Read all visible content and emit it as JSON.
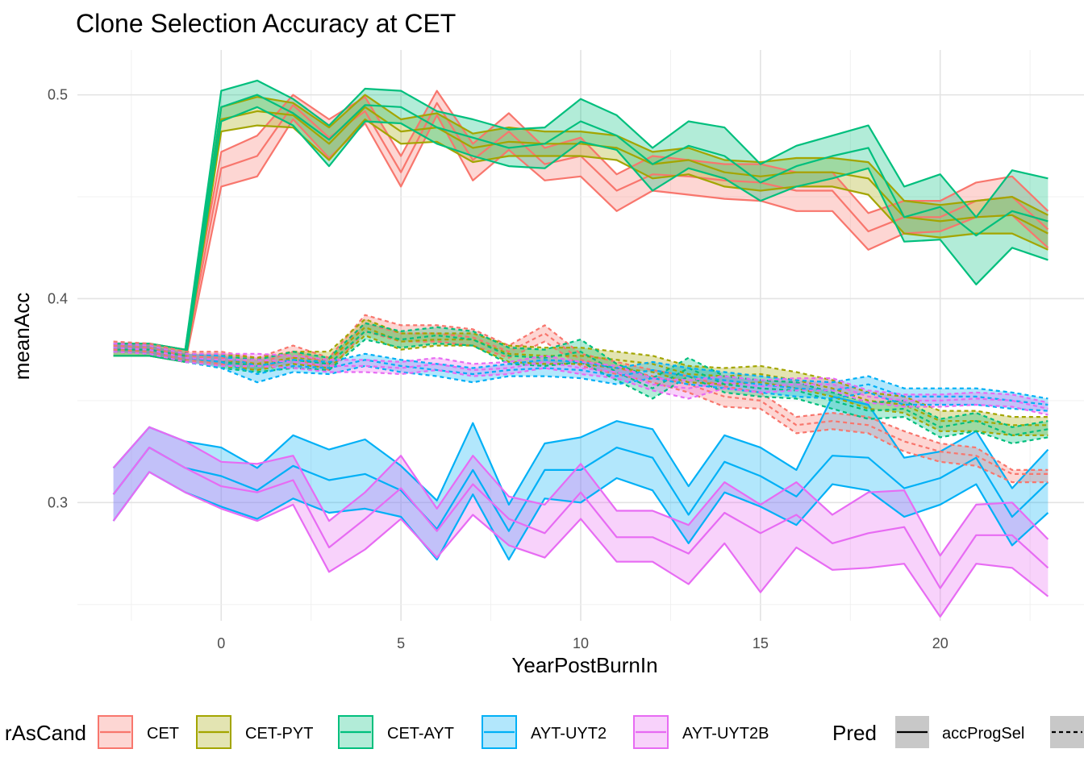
{
  "chart_data": {
    "type": "line",
    "title": "Clone Selection Accuracy at CET",
    "xlabel": "YearPostBurnIn",
    "ylabel": "meanAcc",
    "xlim": [
      -4,
      24
    ],
    "ylim": [
      0.242,
      0.522
    ],
    "x_ticks": [
      0,
      5,
      10,
      15,
      20
    ],
    "x_tick_labels": [
      "0",
      "5",
      "10",
      "15",
      "20"
    ],
    "y_ticks": [
      0.3,
      0.4,
      0.5
    ],
    "y_tick_labels": [
      "0.3",
      "0.4",
      "0.5"
    ],
    "grid": true,
    "legend_position": "bottom",
    "legend": {
      "color_title": "rAsCand",
      "color_entries": [
        {
          "name": "CET",
          "color": "#F8766D"
        },
        {
          "name": "CET-PYT",
          "color": "#A3A500"
        },
        {
          "name": "CET-AYT",
          "color": "#00BF7D"
        },
        {
          "name": "AYT-UYT2",
          "color": "#00B0F6"
        },
        {
          "name": "AYT-UYT2B",
          "color": "#E76BF3"
        }
      ],
      "linetype_title": "Pred",
      "linetype_entries": [
        {
          "name": "accProgSel",
          "style": "solid"
        },
        {
          "name": "",
          "style": "dashed"
        }
      ]
    },
    "x": [
      -3,
      -2,
      -1,
      0,
      1,
      2,
      3,
      4,
      5,
      6,
      7,
      8,
      9,
      10,
      11,
      12,
      13,
      14,
      15,
      16,
      17,
      18,
      19,
      20,
      21,
      22,
      23
    ],
    "series": [
      {
        "name": "CET",
        "linetype": "solid",
        "color": "#F8766D",
        "mean": [
          0.375,
          0.375,
          0.372,
          0.464,
          0.47,
          0.495,
          0.479,
          0.492,
          0.462,
          0.496,
          0.468,
          0.482,
          0.466,
          0.47,
          0.453,
          0.461,
          0.46,
          0.458,
          0.457,
          0.453,
          0.453,
          0.433,
          0.44,
          0.44,
          0.448,
          0.45,
          0.434
        ],
        "lower": [
          0.372,
          0.372,
          0.369,
          0.455,
          0.46,
          0.488,
          0.469,
          0.486,
          0.455,
          0.49,
          0.458,
          0.473,
          0.458,
          0.46,
          0.443,
          0.453,
          0.451,
          0.449,
          0.448,
          0.443,
          0.443,
          0.424,
          0.432,
          0.433,
          0.44,
          0.441,
          0.425
        ],
        "upper": [
          0.378,
          0.378,
          0.375,
          0.472,
          0.48,
          0.5,
          0.488,
          0.499,
          0.47,
          0.502,
          0.476,
          0.491,
          0.474,
          0.479,
          0.461,
          0.47,
          0.468,
          0.466,
          0.466,
          0.462,
          0.462,
          0.442,
          0.448,
          0.448,
          0.457,
          0.46,
          0.443
        ]
      },
      {
        "name": "CET-PYT",
        "linetype": "solid",
        "color": "#A3A500",
        "mean": [
          0.375,
          0.375,
          0.372,
          0.488,
          0.492,
          0.49,
          0.476,
          0.494,
          0.482,
          0.484,
          0.474,
          0.477,
          0.476,
          0.476,
          0.474,
          0.466,
          0.468,
          0.462,
          0.46,
          0.462,
          0.462,
          0.459,
          0.44,
          0.438,
          0.44,
          0.441,
          0.432
        ],
        "lower": [
          0.372,
          0.372,
          0.369,
          0.482,
          0.485,
          0.484,
          0.468,
          0.488,
          0.476,
          0.477,
          0.467,
          0.47,
          0.47,
          0.47,
          0.468,
          0.459,
          0.461,
          0.455,
          0.453,
          0.455,
          0.455,
          0.451,
          0.432,
          0.43,
          0.432,
          0.432,
          0.424
        ],
        "upper": [
          0.378,
          0.378,
          0.375,
          0.494,
          0.499,
          0.496,
          0.484,
          0.5,
          0.488,
          0.491,
          0.481,
          0.484,
          0.482,
          0.482,
          0.48,
          0.472,
          0.474,
          0.468,
          0.467,
          0.469,
          0.469,
          0.467,
          0.448,
          0.446,
          0.448,
          0.45,
          0.441
        ]
      },
      {
        "name": "CET-AYT",
        "linetype": "solid",
        "color": "#00BF7D",
        "mean": [
          0.375,
          0.375,
          0.372,
          0.494,
          0.5,
          0.491,
          0.478,
          0.495,
          0.494,
          0.484,
          0.479,
          0.474,
          0.476,
          0.487,
          0.48,
          0.466,
          0.475,
          0.47,
          0.457,
          0.465,
          0.47,
          0.474,
          0.44,
          0.445,
          0.431,
          0.443,
          0.438
        ],
        "lower": [
          0.372,
          0.372,
          0.369,
          0.487,
          0.494,
          0.485,
          0.465,
          0.487,
          0.486,
          0.476,
          0.47,
          0.465,
          0.464,
          0.477,
          0.473,
          0.453,
          0.464,
          0.459,
          0.448,
          0.455,
          0.459,
          0.464,
          0.428,
          0.429,
          0.407,
          0.425,
          0.419
        ],
        "upper": [
          0.378,
          0.378,
          0.375,
          0.502,
          0.507,
          0.498,
          0.485,
          0.503,
          0.502,
          0.492,
          0.488,
          0.483,
          0.484,
          0.498,
          0.49,
          0.474,
          0.487,
          0.484,
          0.466,
          0.475,
          0.48,
          0.485,
          0.455,
          0.461,
          0.44,
          0.463,
          0.459
        ]
      },
      {
        "name": "AYT-UYT2",
        "linetype": "solid",
        "color": "#00B0F6",
        "mean": [
          0.304,
          0.327,
          0.317,
          0.313,
          0.306,
          0.318,
          0.311,
          0.314,
          0.306,
          0.287,
          0.316,
          0.286,
          0.316,
          0.316,
          0.327,
          0.322,
          0.294,
          0.32,
          0.313,
          0.303,
          0.323,
          0.322,
          0.307,
          0.312,
          0.322,
          0.293,
          0.31
        ],
        "lower": [
          0.291,
          0.315,
          0.305,
          0.298,
          0.292,
          0.302,
          0.295,
          0.297,
          0.293,
          0.272,
          0.304,
          0.272,
          0.302,
          0.3,
          0.312,
          0.306,
          0.28,
          0.305,
          0.298,
          0.289,
          0.309,
          0.306,
          0.293,
          0.299,
          0.309,
          0.279,
          0.295
        ],
        "upper": [
          0.317,
          0.337,
          0.33,
          0.327,
          0.317,
          0.333,
          0.326,
          0.331,
          0.318,
          0.301,
          0.339,
          0.299,
          0.329,
          0.332,
          0.34,
          0.336,
          0.308,
          0.333,
          0.327,
          0.316,
          0.352,
          0.348,
          0.322,
          0.325,
          0.335,
          0.307,
          0.326
        ]
      },
      {
        "name": "AYT-UYT2B",
        "linetype": "solid",
        "color": "#E76BF3",
        "mean": [
          0.304,
          0.327,
          0.317,
          0.308,
          0.305,
          0.311,
          0.278,
          0.292,
          0.307,
          0.286,
          0.309,
          0.292,
          0.285,
          0.305,
          0.283,
          0.283,
          0.275,
          0.295,
          0.285,
          0.294,
          0.28,
          0.285,
          0.288,
          0.258,
          0.284,
          0.284,
          0.268
        ],
        "lower": [
          0.291,
          0.315,
          0.305,
          0.297,
          0.291,
          0.299,
          0.266,
          0.277,
          0.292,
          0.273,
          0.294,
          0.279,
          0.273,
          0.292,
          0.271,
          0.271,
          0.26,
          0.28,
          0.256,
          0.278,
          0.267,
          0.268,
          0.27,
          0.244,
          0.27,
          0.268,
          0.254
        ],
        "upper": [
          0.317,
          0.337,
          0.33,
          0.32,
          0.319,
          0.323,
          0.291,
          0.305,
          0.323,
          0.297,
          0.323,
          0.303,
          0.299,
          0.319,
          0.296,
          0.296,
          0.289,
          0.31,
          0.299,
          0.31,
          0.294,
          0.305,
          0.306,
          0.274,
          0.299,
          0.3,
          0.282
        ]
      },
      {
        "name": "CET",
        "linetype": "dashed",
        "color": "#F8766D",
        "mean": [
          0.377,
          0.376,
          0.372,
          0.371,
          0.368,
          0.374,
          0.368,
          0.388,
          0.383,
          0.383,
          0.381,
          0.374,
          0.383,
          0.37,
          0.366,
          0.362,
          0.358,
          0.352,
          0.35,
          0.338,
          0.34,
          0.338,
          0.33,
          0.325,
          0.323,
          0.314,
          0.314
        ],
        "lower": [
          0.375,
          0.374,
          0.37,
          0.368,
          0.365,
          0.371,
          0.365,
          0.384,
          0.379,
          0.379,
          0.377,
          0.371,
          0.379,
          0.367,
          0.363,
          0.359,
          0.354,
          0.347,
          0.346,
          0.334,
          0.336,
          0.334,
          0.325,
          0.32,
          0.318,
          0.31,
          0.31
        ],
        "upper": [
          0.379,
          0.378,
          0.374,
          0.374,
          0.371,
          0.377,
          0.371,
          0.392,
          0.387,
          0.387,
          0.385,
          0.377,
          0.387,
          0.373,
          0.369,
          0.365,
          0.362,
          0.357,
          0.354,
          0.342,
          0.344,
          0.342,
          0.335,
          0.329,
          0.327,
          0.316,
          0.316
        ]
      },
      {
        "name": "CET-PYT",
        "linetype": "dashed",
        "color": "#A3A500",
        "mean": [
          0.376,
          0.375,
          0.371,
          0.37,
          0.368,
          0.371,
          0.37,
          0.386,
          0.379,
          0.38,
          0.38,
          0.373,
          0.372,
          0.372,
          0.37,
          0.368,
          0.363,
          0.362,
          0.363,
          0.36,
          0.356,
          0.35,
          0.348,
          0.34,
          0.34,
          0.338,
          0.338
        ],
        "lower": [
          0.374,
          0.373,
          0.369,
          0.367,
          0.365,
          0.368,
          0.366,
          0.382,
          0.375,
          0.377,
          0.377,
          0.369,
          0.368,
          0.368,
          0.366,
          0.364,
          0.359,
          0.358,
          0.359,
          0.356,
          0.352,
          0.346,
          0.344,
          0.335,
          0.335,
          0.333,
          0.333
        ],
        "upper": [
          0.378,
          0.377,
          0.373,
          0.373,
          0.371,
          0.374,
          0.374,
          0.39,
          0.383,
          0.383,
          0.383,
          0.377,
          0.376,
          0.376,
          0.374,
          0.372,
          0.367,
          0.366,
          0.367,
          0.364,
          0.36,
          0.354,
          0.352,
          0.345,
          0.345,
          0.342,
          0.342
        ]
      },
      {
        "name": "CET-AYT",
        "linetype": "dashed",
        "color": "#00BF7D",
        "mean": [
          0.376,
          0.375,
          0.371,
          0.369,
          0.367,
          0.37,
          0.368,
          0.384,
          0.38,
          0.382,
          0.38,
          0.372,
          0.371,
          0.374,
          0.364,
          0.356,
          0.366,
          0.358,
          0.356,
          0.355,
          0.35,
          0.345,
          0.346,
          0.337,
          0.34,
          0.333,
          0.336
        ],
        "lower": [
          0.374,
          0.373,
          0.369,
          0.366,
          0.364,
          0.366,
          0.365,
          0.38,
          0.376,
          0.378,
          0.377,
          0.368,
          0.367,
          0.369,
          0.36,
          0.351,
          0.362,
          0.354,
          0.352,
          0.351,
          0.346,
          0.341,
          0.342,
          0.332,
          0.335,
          0.329,
          0.332
        ],
        "upper": [
          0.378,
          0.377,
          0.373,
          0.372,
          0.37,
          0.374,
          0.371,
          0.388,
          0.384,
          0.386,
          0.384,
          0.376,
          0.375,
          0.38,
          0.368,
          0.361,
          0.371,
          0.362,
          0.36,
          0.359,
          0.354,
          0.349,
          0.35,
          0.341,
          0.344,
          0.337,
          0.34
        ]
      },
      {
        "name": "AYT-UYT2",
        "linetype": "dashed",
        "color": "#00B0F6",
        "mean": [
          0.376,
          0.375,
          0.371,
          0.369,
          0.363,
          0.367,
          0.366,
          0.37,
          0.367,
          0.365,
          0.363,
          0.365,
          0.366,
          0.365,
          0.362,
          0.365,
          0.362,
          0.36,
          0.358,
          0.356,
          0.355,
          0.358,
          0.352,
          0.352,
          0.352,
          0.35,
          0.348
        ],
        "lower": [
          0.374,
          0.373,
          0.369,
          0.366,
          0.359,
          0.364,
          0.363,
          0.367,
          0.364,
          0.362,
          0.359,
          0.362,
          0.362,
          0.361,
          0.358,
          0.361,
          0.358,
          0.356,
          0.354,
          0.352,
          0.351,
          0.354,
          0.348,
          0.348,
          0.348,
          0.346,
          0.345
        ],
        "upper": [
          0.378,
          0.377,
          0.373,
          0.372,
          0.367,
          0.37,
          0.369,
          0.373,
          0.37,
          0.368,
          0.366,
          0.368,
          0.37,
          0.369,
          0.366,
          0.369,
          0.366,
          0.364,
          0.362,
          0.36,
          0.359,
          0.362,
          0.356,
          0.356,
          0.356,
          0.354,
          0.351
        ]
      },
      {
        "name": "AYT-UYT2B",
        "linetype": "dashed",
        "color": "#E76BF3",
        "mean": [
          0.376,
          0.375,
          0.371,
          0.37,
          0.37,
          0.369,
          0.367,
          0.367,
          0.366,
          0.368,
          0.365,
          0.366,
          0.369,
          0.366,
          0.364,
          0.358,
          0.356,
          0.359,
          0.357,
          0.358,
          0.358,
          0.352,
          0.35,
          0.35,
          0.351,
          0.35,
          0.346
        ],
        "lower": [
          0.374,
          0.373,
          0.369,
          0.367,
          0.367,
          0.366,
          0.364,
          0.364,
          0.363,
          0.365,
          0.362,
          0.363,
          0.366,
          0.363,
          0.361,
          0.355,
          0.351,
          0.356,
          0.354,
          0.355,
          0.355,
          0.349,
          0.347,
          0.347,
          0.348,
          0.347,
          0.343
        ],
        "upper": [
          0.378,
          0.377,
          0.373,
          0.373,
          0.373,
          0.372,
          0.37,
          0.37,
          0.369,
          0.371,
          0.368,
          0.369,
          0.372,
          0.369,
          0.367,
          0.361,
          0.36,
          0.362,
          0.36,
          0.361,
          0.361,
          0.355,
          0.353,
          0.353,
          0.354,
          0.353,
          0.349
        ]
      }
    ]
  }
}
